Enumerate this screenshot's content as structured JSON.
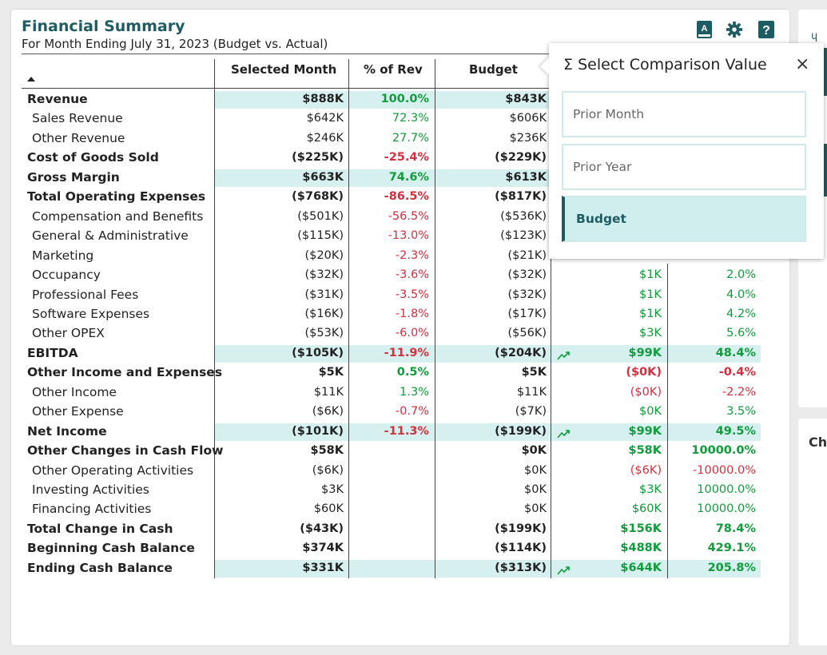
{
  "header": {
    "title": "Financial Summary",
    "subtitle": "For Month Ending July 31, 2023 (Budget vs. Actual)"
  },
  "toolbar": {
    "icons": [
      "glossary-icon",
      "gear-icon",
      "help-icon"
    ],
    "glossary_letter": "A",
    "help_glyph": "?"
  },
  "columns": {
    "selected_month": "Selected Month",
    "pct_of_rev": "% of Rev",
    "budget": "Budget"
  },
  "colors": {
    "accent": "#1e5c63",
    "positive": "#119c3c",
    "negative": "#d42f3e",
    "highlight": "#d6f0f0"
  },
  "rows": [
    {
      "label": "Revenue",
      "bold": true,
      "hl": true,
      "sel": "$888K",
      "pct": "100.0%",
      "pct_c": "pos",
      "bud": "$843K",
      "trend": false,
      "var": "",
      "var_c": "",
      "vpct": "",
      "vpct_c": ""
    },
    {
      "label": "Sales Revenue",
      "bold": false,
      "hl": false,
      "sel": "$642K",
      "pct": "72.3%",
      "pct_c": "pos",
      "bud": "$606K",
      "trend": false,
      "var": "",
      "var_c": "",
      "vpct": "",
      "vpct_c": ""
    },
    {
      "label": "Other Revenue",
      "bold": false,
      "hl": false,
      "sel": "$246K",
      "pct": "27.7%",
      "pct_c": "pos",
      "bud": "$236K",
      "trend": false,
      "var": "",
      "var_c": "",
      "vpct": "",
      "vpct_c": ""
    },
    {
      "label": "Cost of Goods Sold",
      "bold": true,
      "hl": false,
      "sel": "($225K)",
      "pct": "-25.4%",
      "pct_c": "neg",
      "bud": "($229K)",
      "trend": false,
      "var": "",
      "var_c": "",
      "vpct": "",
      "vpct_c": ""
    },
    {
      "label": "Gross Margin",
      "bold": true,
      "hl": true,
      "sel": "$663K",
      "pct": "74.6%",
      "pct_c": "pos",
      "bud": "$613K",
      "trend": false,
      "var": "",
      "var_c": "",
      "vpct": "",
      "vpct_c": ""
    },
    {
      "label": "Total Operating Expenses",
      "bold": true,
      "hl": false,
      "sel": "($768K)",
      "pct": "-86.5%",
      "pct_c": "neg",
      "bud": "($817K)",
      "trend": false,
      "var": "",
      "var_c": "",
      "vpct": "",
      "vpct_c": ""
    },
    {
      "label": "Compensation and Benefits",
      "bold": false,
      "hl": false,
      "sel": "($501K)",
      "pct": "-56.5%",
      "pct_c": "neg",
      "bud": "($536K)",
      "trend": false,
      "var": "",
      "var_c": "",
      "vpct": "",
      "vpct_c": ""
    },
    {
      "label": "General & Administrative",
      "bold": false,
      "hl": false,
      "sel": "($115K)",
      "pct": "-13.0%",
      "pct_c": "neg",
      "bud": "($123K)",
      "trend": false,
      "var": "",
      "var_c": "",
      "vpct": "",
      "vpct_c": ""
    },
    {
      "label": "Marketing",
      "bold": false,
      "hl": false,
      "sel": "($20K)",
      "pct": "-2.3%",
      "pct_c": "neg",
      "bud": "($21K)",
      "trend": false,
      "var": "",
      "var_c": "",
      "vpct": "",
      "vpct_c": ""
    },
    {
      "label": "Occupancy",
      "bold": false,
      "hl": false,
      "sel": "($32K)",
      "pct": "-3.6%",
      "pct_c": "neg",
      "bud": "($32K)",
      "trend": false,
      "var": "$1K",
      "var_c": "pos",
      "vpct": "2.0%",
      "vpct_c": "pos"
    },
    {
      "label": "Professional Fees",
      "bold": false,
      "hl": false,
      "sel": "($31K)",
      "pct": "-3.5%",
      "pct_c": "neg",
      "bud": "($32K)",
      "trend": false,
      "var": "$1K",
      "var_c": "pos",
      "vpct": "4.0%",
      "vpct_c": "pos"
    },
    {
      "label": "Software Expenses",
      "bold": false,
      "hl": false,
      "sel": "($16K)",
      "pct": "-1.8%",
      "pct_c": "neg",
      "bud": "($17K)",
      "trend": false,
      "var": "$1K",
      "var_c": "pos",
      "vpct": "4.2%",
      "vpct_c": "pos"
    },
    {
      "label": "Other OPEX",
      "bold": false,
      "hl": false,
      "sel": "($53K)",
      "pct": "-6.0%",
      "pct_c": "neg",
      "bud": "($56K)",
      "trend": false,
      "var": "$3K",
      "var_c": "pos",
      "vpct": "5.6%",
      "vpct_c": "pos"
    },
    {
      "label": "EBITDA",
      "bold": true,
      "hl": true,
      "sel": "($105K)",
      "pct": "-11.9%",
      "pct_c": "neg",
      "bud": "($204K)",
      "trend": true,
      "var": "$99K",
      "var_c": "pos",
      "vpct": "48.4%",
      "vpct_c": "pos"
    },
    {
      "label": "Other Income and Expenses",
      "bold": true,
      "hl": false,
      "sel": "$5K",
      "pct": "0.5%",
      "pct_c": "pos",
      "bud": "$5K",
      "trend": false,
      "var": "($0K)",
      "var_c": "neg",
      "vpct": "-0.4%",
      "vpct_c": "neg"
    },
    {
      "label": "Other Income",
      "bold": false,
      "hl": false,
      "sel": "$11K",
      "pct": "1.3%",
      "pct_c": "pos",
      "bud": "$11K",
      "trend": false,
      "var": "($0K)",
      "var_c": "neg",
      "vpct": "-2.2%",
      "vpct_c": "neg"
    },
    {
      "label": "Other Expense",
      "bold": false,
      "hl": false,
      "sel": "($6K)",
      "pct": "-0.7%",
      "pct_c": "neg",
      "bud": "($7K)",
      "trend": false,
      "var": "$0K",
      "var_c": "pos",
      "vpct": "3.5%",
      "vpct_c": "pos"
    },
    {
      "label": "Net Income",
      "bold": true,
      "hl": true,
      "sel": "($101K)",
      "pct": "-11.3%",
      "pct_c": "neg",
      "bud": "($199K)",
      "trend": true,
      "var": "$99K",
      "var_c": "pos",
      "vpct": "49.5%",
      "vpct_c": "pos"
    },
    {
      "label": "Other Changes in Cash Flow",
      "bold": true,
      "hl": false,
      "sel": "$58K",
      "pct": "",
      "pct_c": "",
      "bud": "$0K",
      "trend": false,
      "var": "$58K",
      "var_c": "pos",
      "vpct": "10000.0%",
      "vpct_c": "pos"
    },
    {
      "label": "Other Operating Activities",
      "bold": false,
      "hl": false,
      "sel": "($6K)",
      "pct": "",
      "pct_c": "",
      "bud": "$0K",
      "trend": false,
      "var": "($6K)",
      "var_c": "neg",
      "vpct": "-10000.0%",
      "vpct_c": "neg"
    },
    {
      "label": "Investing Activities",
      "bold": false,
      "hl": false,
      "sel": "$3K",
      "pct": "",
      "pct_c": "",
      "bud": "$0K",
      "trend": false,
      "var": "$3K",
      "var_c": "pos",
      "vpct": "10000.0%",
      "vpct_c": "pos"
    },
    {
      "label": "Financing Activities",
      "bold": false,
      "hl": false,
      "sel": "$60K",
      "pct": "",
      "pct_c": "",
      "bud": "$0K",
      "trend": false,
      "var": "$60K",
      "var_c": "pos",
      "vpct": "10000.0%",
      "vpct_c": "pos"
    },
    {
      "label": "Total Change in Cash",
      "bold": true,
      "hl": false,
      "sel": "($43K)",
      "pct": "",
      "pct_c": "",
      "bud": "($199K)",
      "trend": false,
      "var": "$156K",
      "var_c": "pos",
      "vpct": "78.4%",
      "vpct_c": "pos"
    },
    {
      "label": "Beginning Cash Balance",
      "bold": true,
      "hl": false,
      "sel": "$374K",
      "pct": "",
      "pct_c": "",
      "bud": "($114K)",
      "trend": false,
      "var": "$488K",
      "var_c": "pos",
      "vpct": "429.1%",
      "vpct_c": "pos"
    },
    {
      "label": "Ending Cash Balance",
      "bold": true,
      "hl": true,
      "sel": "$331K",
      "pct": "",
      "pct_c": "",
      "bud": "($313K)",
      "trend": true,
      "var": "$644K",
      "var_c": "pos",
      "vpct": "205.8%",
      "vpct_c": "pos"
    }
  ],
  "popup": {
    "sigma": "Σ",
    "title": "Select Comparison Value",
    "close": "×",
    "options": [
      {
        "label": "Prior Month",
        "selected": false
      },
      {
        "label": "Prior Year",
        "selected": false
      },
      {
        "label": "Budget",
        "selected": true
      }
    ]
  },
  "side_panel": {
    "partial_title": "Ch",
    "partial_glyph": "ɥ"
  }
}
